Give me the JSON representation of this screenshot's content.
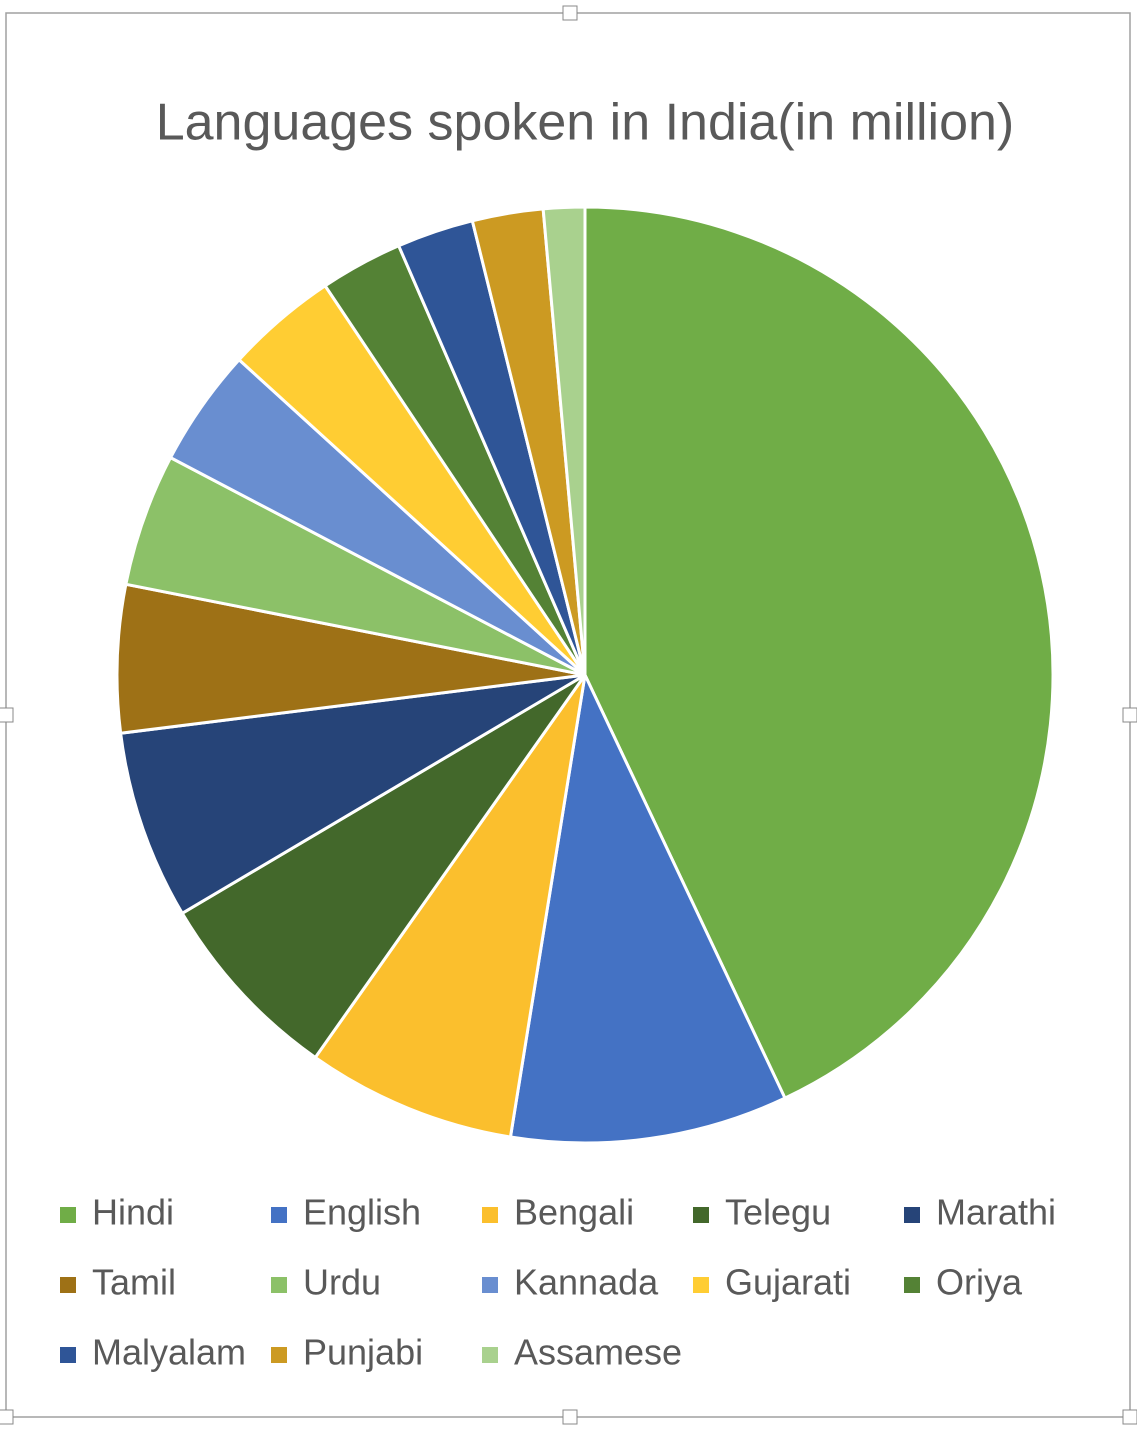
{
  "chart_data": {
    "type": "pie",
    "title": "Languages spoken in India(in million)",
    "categories": [
      "Hindi",
      "English",
      "Bengali",
      "Telegu",
      "Marathi",
      "Tamil",
      "Urdu",
      "Kannada",
      "Gujarati",
      "Oriya",
      "Malyalam",
      "Punjabi",
      "Assamese"
    ],
    "values": [
      422,
      94,
      71,
      66,
      64,
      50,
      45,
      40,
      38,
      28,
      26,
      24,
      14
    ],
    "colors": [
      "#70ad47",
      "#4472c4",
      "#fbbf2d",
      "#43682b",
      "#264478",
      "#9e7116",
      "#8cc168",
      "#698ed0",
      "#ffcd33",
      "#548235",
      "#2f5597",
      "#cc9a22",
      "#a9d18e"
    ],
    "legend": "bottom"
  }
}
